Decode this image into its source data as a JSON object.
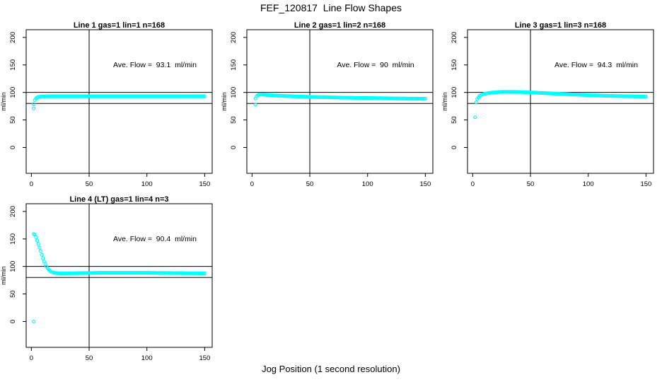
{
  "page": {
    "main_title": "FEF_120817  Line Flow Shapes",
    "x_axis_label": "Jog Position (1 second resolution)",
    "background": "#ffffff",
    "axis_color": "#000000",
    "point_color": "#00ffff"
  },
  "chart_data": [
    {
      "type": "scatter",
      "title": "Line 1 gas=1 lin=1 n=168",
      "annotation": "Ave. Flow =  93.1  ml/min",
      "ave_flow_ml_min": 93.1,
      "ylabel": "ml/min",
      "xlim": [
        -4.5,
        156.5
      ],
      "ylim": [
        -47,
        214
      ],
      "xticks": [
        0,
        50,
        100,
        150
      ],
      "yticks": [
        0,
        50,
        100,
        150,
        200
      ],
      "ref_hlines": [
        100,
        80
      ],
      "ref_vlines": [
        50
      ],
      "point_color": "#00ffff",
      "x_range": [
        2,
        150
      ],
      "x_step": 1,
      "anchors": [
        [
          2,
          79
        ],
        [
          3,
          86
        ],
        [
          4,
          89
        ],
        [
          5,
          91
        ],
        [
          6,
          92
        ],
        [
          8,
          92.5
        ],
        [
          15,
          93
        ],
        [
          150,
          93
        ]
      ],
      "outliers": [
        [
          2,
          71
        ]
      ]
    },
    {
      "type": "scatter",
      "title": "Line 2 gas=1 lin=2 n=168",
      "annotation": "Ave. Flow =  90  ml/min",
      "ave_flow_ml_min": 90,
      "ylabel": "ml/min",
      "xlim": [
        -4.5,
        156.5
      ],
      "ylim": [
        -47,
        214
      ],
      "xticks": [
        0,
        50,
        100,
        150
      ],
      "yticks": [
        0,
        50,
        100,
        150,
        200
      ],
      "ref_hlines": [
        100,
        80
      ],
      "ref_vlines": [
        50
      ],
      "point_color": "#00ffff",
      "x_range": [
        3,
        150
      ],
      "x_step": 1,
      "anchors": [
        [
          3,
          89
        ],
        [
          4,
          93
        ],
        [
          5,
          95
        ],
        [
          6,
          96
        ],
        [
          8,
          96.5
        ],
        [
          12,
          95.5
        ],
        [
          20,
          94.5
        ],
        [
          35,
          93
        ],
        [
          50,
          92
        ],
        [
          70,
          91
        ],
        [
          90,
          90.2
        ],
        [
          110,
          89.6
        ],
        [
          130,
          89
        ],
        [
          150,
          88.5
        ]
      ],
      "outliers": [
        [
          3,
          78
        ]
      ]
    },
    {
      "type": "scatter",
      "title": "Line 3 gas=1 lin=3 n=168",
      "annotation": "Ave. Flow =  94.3  ml/min",
      "ave_flow_ml_min": 94.3,
      "ylabel": "ml/min",
      "xlim": [
        -4.5,
        156.5
      ],
      "ylim": [
        -47,
        214
      ],
      "xticks": [
        0,
        50,
        100,
        150
      ],
      "yticks": [
        0,
        50,
        100,
        150,
        200
      ],
      "ref_hlines": [
        100,
        80
      ],
      "ref_vlines": [
        50
      ],
      "point_color": "#00ffff",
      "x_range": [
        3,
        150
      ],
      "x_step": 1,
      "anchors": [
        [
          3,
          82
        ],
        [
          4,
          88
        ],
        [
          5,
          91
        ],
        [
          6,
          94
        ],
        [
          8,
          96
        ],
        [
          10,
          97.5
        ],
        [
          14,
          99
        ],
        [
          18,
          100
        ],
        [
          25,
          101
        ],
        [
          35,
          101
        ],
        [
          45,
          100.5
        ],
        [
          55,
          99.5
        ],
        [
          70,
          98
        ],
        [
          85,
          96.5
        ],
        [
          100,
          95
        ],
        [
          115,
          94
        ],
        [
          130,
          93.2
        ],
        [
          150,
          92.5
        ]
      ],
      "outliers": [
        [
          2,
          55
        ]
      ]
    },
    {
      "type": "scatter",
      "title": "Line 4 (LT) gas=1 lin=4 n=3",
      "annotation": "Ave. Flow =  90.4  ml/min",
      "ave_flow_ml_min": 90.4,
      "ylabel": "ml/min",
      "xlim": [
        -4.5,
        156.5
      ],
      "ylim": [
        -47,
        214
      ],
      "xticks": [
        0,
        50,
        100,
        150
      ],
      "yticks": [
        0,
        50,
        100,
        150,
        200
      ],
      "ref_hlines": [
        100,
        80
      ],
      "ref_vlines": [
        50
      ],
      "point_color": "#00ffff",
      "x_range": [
        2,
        150
      ],
      "x_step": 1,
      "anchors": [
        [
          2,
          159
        ],
        [
          3,
          158
        ],
        [
          4,
          153
        ],
        [
          5,
          147
        ],
        [
          6,
          141
        ],
        [
          7,
          134
        ],
        [
          8,
          128
        ],
        [
          9,
          121
        ],
        [
          10,
          115
        ],
        [
          11,
          109
        ],
        [
          12,
          104
        ],
        [
          13,
          100
        ],
        [
          14,
          97
        ],
        [
          15,
          94
        ],
        [
          16,
          92
        ],
        [
          17,
          90.5
        ],
        [
          18,
          89.5
        ],
        [
          20,
          88.5
        ],
        [
          24,
          87.5
        ],
        [
          30,
          87.5
        ],
        [
          45,
          88
        ],
        [
          60,
          88.5
        ],
        [
          80,
          88.5
        ],
        [
          100,
          88.5
        ],
        [
          120,
          88
        ],
        [
          150,
          87.5
        ]
      ],
      "outliers": [
        [
          2,
          0
        ]
      ]
    }
  ]
}
